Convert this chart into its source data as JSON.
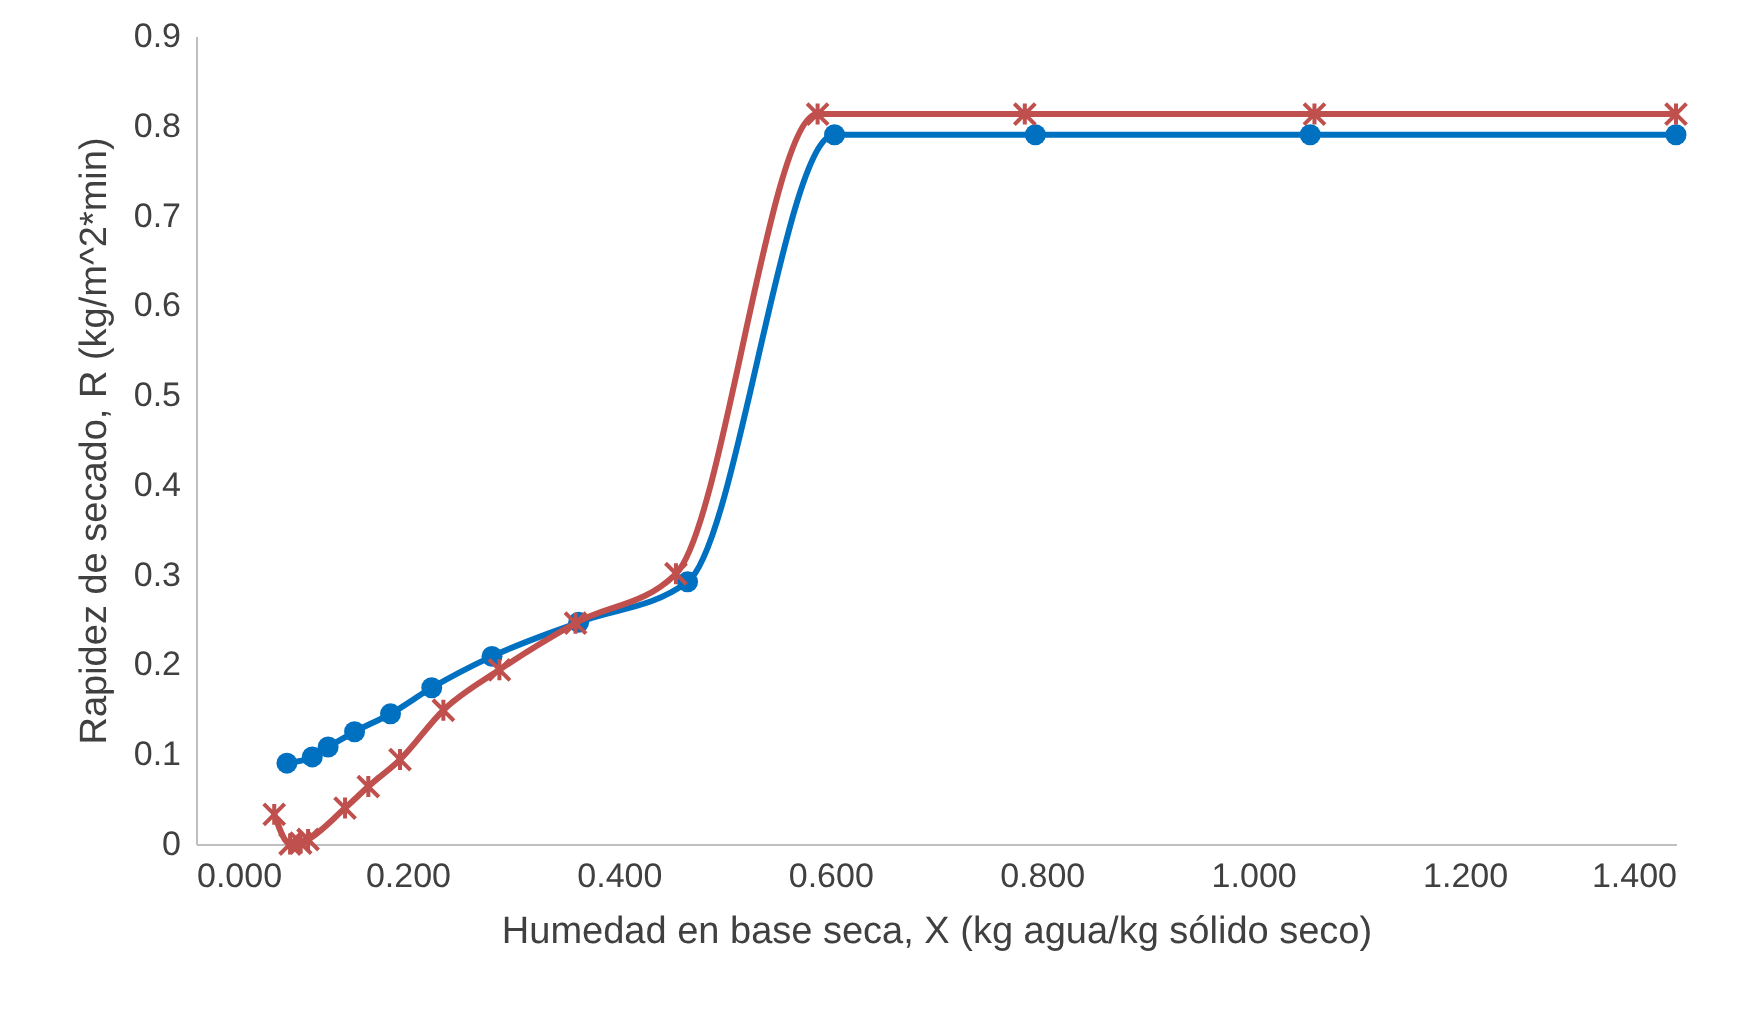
{
  "chart_data": {
    "type": "line",
    "xlabel": "Humedad en base seca, X (kg agua/kg sólido seco)",
    "ylabel": "Rapidez de secado, R (kg/m^2*min)",
    "xlim": [
      0,
      1.4
    ],
    "xticks": [
      {
        "value": 0,
        "label": "0.000"
      },
      {
        "value": 0.2,
        "label": "0.200"
      },
      {
        "value": 0.4,
        "label": "0.400"
      },
      {
        "value": 0.6,
        "label": "0.600"
      },
      {
        "value": 0.8,
        "label": "0.800"
      },
      {
        "value": 1.0,
        "label": "1.000"
      },
      {
        "value": 1.2,
        "label": "1.200"
      },
      {
        "value": 1.4,
        "label": "1.400"
      }
    ],
    "ylim": [
      0,
      0.9
    ],
    "yticks": [
      0,
      0.1,
      0.2,
      0.3,
      0.4,
      0.5,
      0.6,
      0.7,
      0.8,
      0.9
    ],
    "grid": false,
    "series": [
      {
        "color": "#0070c0",
        "marker": "circle",
        "x": [
          0.086,
          0.11,
          0.125,
          0.15,
          0.184,
          0.223,
          0.28,
          0.362,
          0.465,
          0.604,
          0.794,
          1.054,
          1.4
        ],
        "values": [
          0.09,
          0.097,
          0.108,
          0.125,
          0.145,
          0.174,
          0.209,
          0.247,
          0.292,
          0.79,
          0.79,
          0.79,
          0.79
        ]
      },
      {
        "color": "#c0504d",
        "marker": "cross",
        "x": [
          0.074,
          0.089,
          0.099,
          0.106,
          0.141,
          0.163,
          0.193,
          0.234,
          0.287,
          0.359,
          0.454,
          0.588,
          0.784,
          1.058,
          1.4
        ],
        "values": [
          0.033,
          0.0,
          0.001,
          0.005,
          0.04,
          0.064,
          0.094,
          0.149,
          0.194,
          0.246,
          0.301,
          0.813,
          0.813,
          0.813,
          0.813
        ]
      }
    ]
  }
}
